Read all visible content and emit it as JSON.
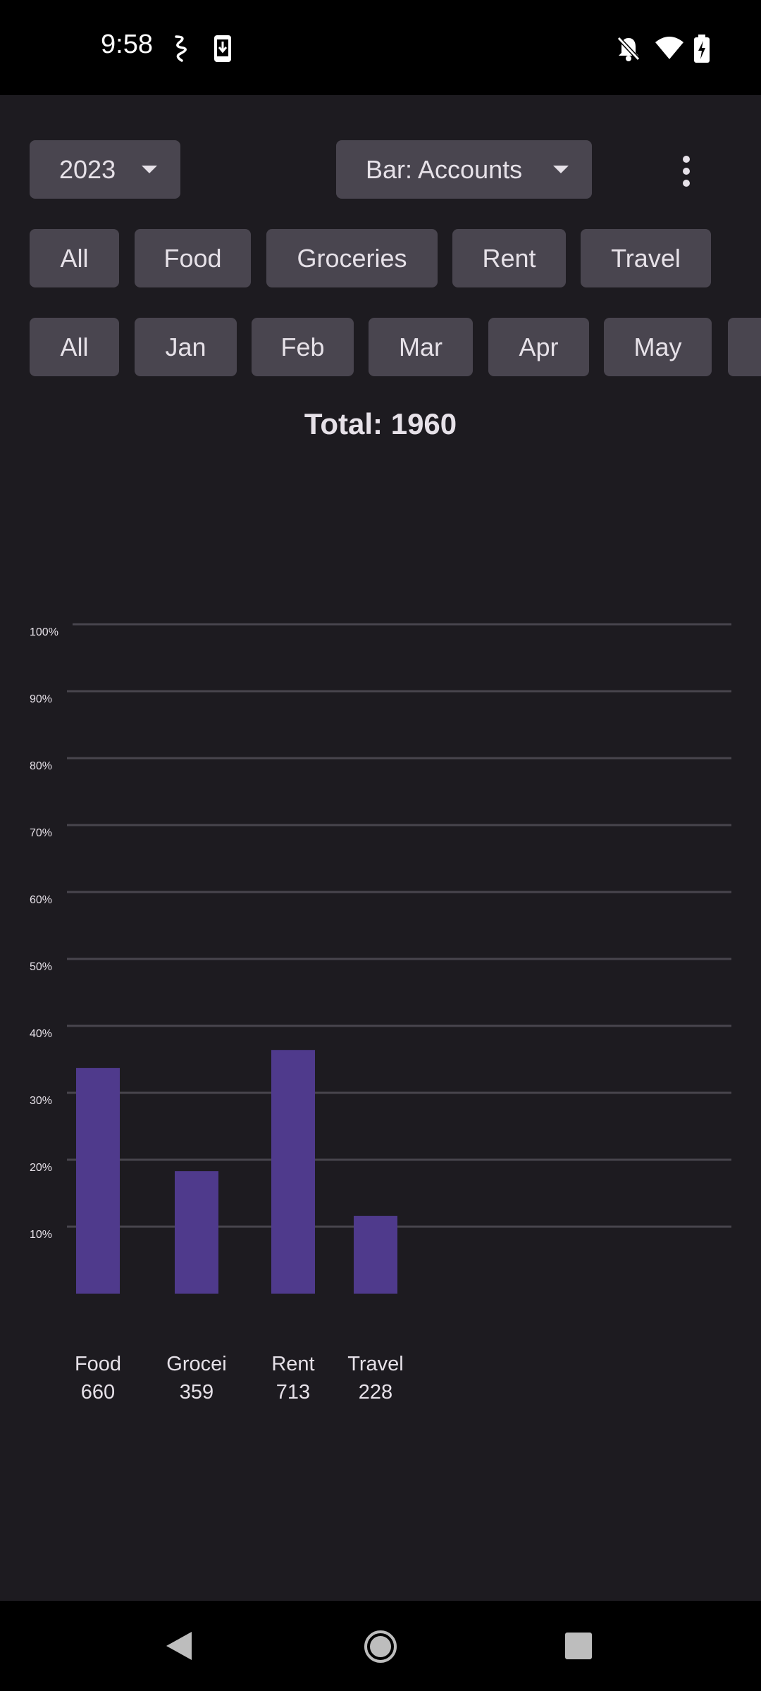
{
  "status_bar": {
    "time": "9:58"
  },
  "toolbar": {
    "year_dropdown": "2023",
    "chart_mode_dropdown": "Bar: Accounts"
  },
  "category_chips": [
    "All",
    "Food",
    "Groceries",
    "Rent",
    "Travel"
  ],
  "month_chips": [
    "All",
    "Jan",
    "Feb",
    "Mar",
    "Apr",
    "May"
  ],
  "total_text": "Total: 1960",
  "chart_data": {
    "type": "bar",
    "categories": [
      "Food",
      "Groceries",
      "Rent",
      "Travel"
    ],
    "category_display_labels": [
      "Food",
      "Grocei",
      "Rent",
      "Travel"
    ],
    "values": [
      660,
      359,
      713,
      228
    ],
    "value_labels": [
      "660",
      "359",
      "713",
      "228"
    ],
    "percent_values": [
      33.7,
      18.3,
      36.4,
      11.6
    ],
    "y_tick_labels": [
      "10%",
      "20%",
      "30%",
      "40%",
      "50%",
      "60%",
      "70%",
      "80%",
      "90%",
      "100%"
    ],
    "ylim": [
      0,
      100
    ],
    "grid": true,
    "bar_color": "#4f3a8c",
    "grid_color": "#48454d"
  },
  "colors": {
    "background": "#1d1b20",
    "chip": "#49454f",
    "text": "#e6e1e8"
  }
}
